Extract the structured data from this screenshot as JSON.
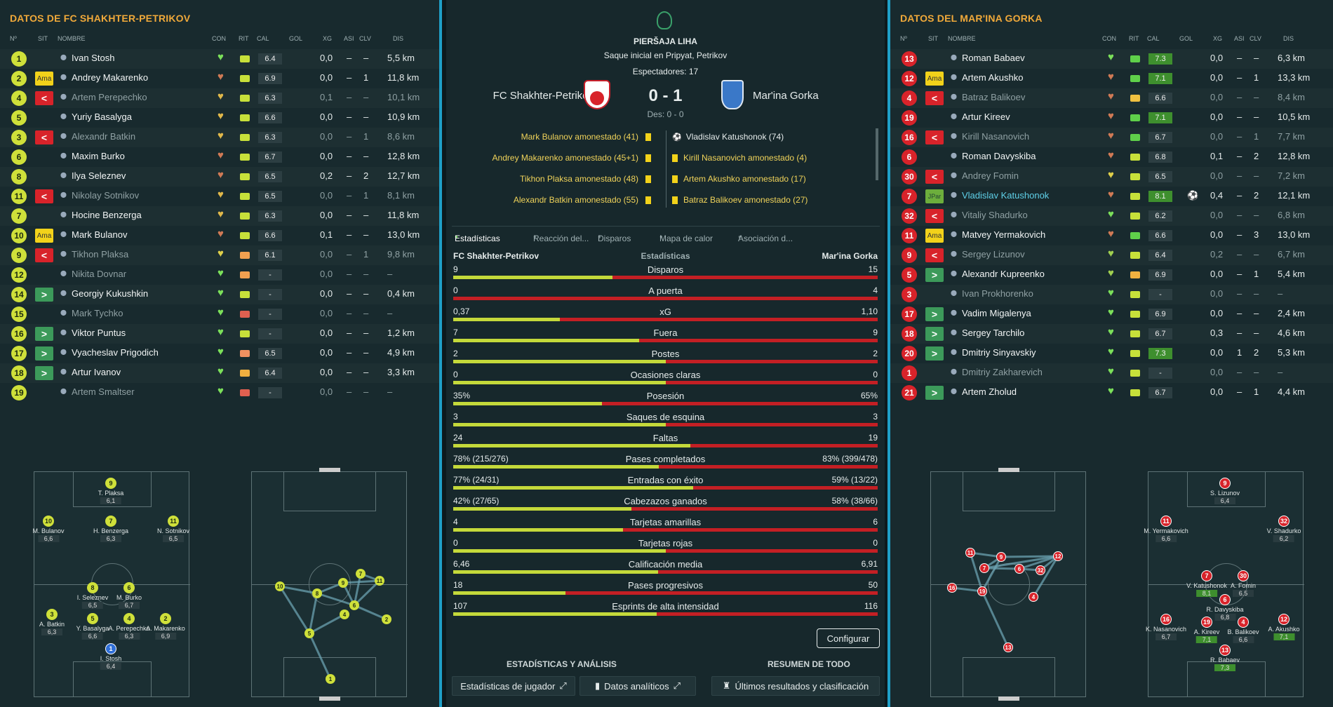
{
  "left": {
    "title": "DATOS DE FC SHAKHTER-PETRIKOV",
    "headers": [
      "Nº",
      "SIT",
      "NOMBRE",
      "CON",
      "RIT",
      "CAL",
      "GOL",
      "XG",
      "ASI",
      "CLV",
      "DIS"
    ],
    "players": [
      {
        "num": "1",
        "sit": "",
        "name": "Ivan Stosh",
        "dim": false,
        "con": "#7be05a",
        "rit": "#c7e03a",
        "cal": "6.4",
        "xg": "0,0",
        "asi": "–",
        "clv": "–",
        "dis": "5,5 km"
      },
      {
        "num": "2",
        "sit": "Ama",
        "name": "Andrey Makarenko",
        "dim": false,
        "con": "#d07a55",
        "rit": "#c7e03a",
        "cal": "6.9",
        "xg": "0,0",
        "asi": "–",
        "clv": "1",
        "dis": "11,8 km"
      },
      {
        "num": "4",
        "sit": "<",
        "name": "Artem Perepechko",
        "dim": true,
        "con": "#e0b84a",
        "rit": "#c7e03a",
        "cal": "6.3",
        "xg": "0,1",
        "asi": "–",
        "clv": "–",
        "dis": "10,1 km"
      },
      {
        "num": "5",
        "sit": "",
        "name": "Yuriy Basalyga",
        "dim": false,
        "con": "#e0b84a",
        "rit": "#c7e03a",
        "cal": "6.6",
        "xg": "0,0",
        "asi": "–",
        "clv": "–",
        "dis": "10,9 km"
      },
      {
        "num": "3",
        "sit": "<",
        "name": "Alexandr Batkin",
        "dim": true,
        "con": "#e0b84a",
        "rit": "#c7e03a",
        "cal": "6.3",
        "xg": "0,0",
        "asi": "–",
        "clv": "1",
        "dis": "8,6 km"
      },
      {
        "num": "6",
        "sit": "",
        "name": "Maxim Burko",
        "dim": false,
        "con": "#d07a55",
        "rit": "#c7e03a",
        "cal": "6.7",
        "xg": "0,0",
        "asi": "–",
        "clv": "–",
        "dis": "12,8 km"
      },
      {
        "num": "8",
        "sit": "",
        "name": "Ilya Seleznev",
        "dim": false,
        "con": "#d07a55",
        "rit": "#c7e03a",
        "cal": "6.5",
        "xg": "0,2",
        "asi": "–",
        "clv": "2",
        "dis": "12,7 km"
      },
      {
        "num": "11",
        "sit": "<",
        "name": "Nikolay Sotnikov",
        "dim": true,
        "con": "#e0b84a",
        "rit": "#c7e03a",
        "cal": "6.5",
        "xg": "0,0",
        "asi": "–",
        "clv": "1",
        "dis": "8,1 km"
      },
      {
        "num": "7",
        "sit": "",
        "name": "Hocine Benzerga",
        "dim": false,
        "con": "#e0b84a",
        "rit": "#c7e03a",
        "cal": "6.3",
        "xg": "0,0",
        "asi": "–",
        "clv": "–",
        "dis": "11,8 km"
      },
      {
        "num": "10",
        "sit": "Ama",
        "name": "Mark Bulanov",
        "dim": false,
        "con": "#d07a55",
        "rit": "#c7e03a",
        "cal": "6.6",
        "xg": "0,1",
        "asi": "–",
        "clv": "–",
        "dis": "13,0 km"
      },
      {
        "num": "9",
        "sit": "<",
        "name": "Tikhon Plaksa",
        "dim": true,
        "con": "#e0d04a",
        "rit": "#f0a050",
        "cal": "6.1",
        "xg": "0,0",
        "asi": "–",
        "clv": "1",
        "dis": "9,8 km"
      },
      {
        "num": "12",
        "sit": "",
        "name": "Nikita Dovnar",
        "dim": true,
        "con": "#7be05a",
        "rit": "#f0a050",
        "cal": "-",
        "xg": "0,0",
        "asi": "–",
        "clv": "–",
        "dis": "–"
      },
      {
        "num": "14",
        "sit": ">",
        "name": "Georgiy Kukushkin",
        "dim": false,
        "con": "#7be05a",
        "rit": "#c7e03a",
        "cal": "-",
        "xg": "0,0",
        "asi": "–",
        "clv": "–",
        "dis": "0,4 km"
      },
      {
        "num": "15",
        "sit": "",
        "name": "Mark Tychko",
        "dim": true,
        "con": "#7be05a",
        "rit": "#e06050",
        "cal": "-",
        "xg": "0,0",
        "asi": "–",
        "clv": "–",
        "dis": "–"
      },
      {
        "num": "16",
        "sit": ">",
        "name": "Viktor Puntus",
        "dim": false,
        "con": "#7be05a",
        "rit": "#c7e03a",
        "cal": "-",
        "xg": "0,0",
        "asi": "–",
        "clv": "–",
        "dis": "1,2 km"
      },
      {
        "num": "17",
        "sit": ">",
        "name": "Vyacheslav Prigodich",
        "dim": false,
        "con": "#7be05a",
        "rit": "#f09060",
        "cal": "6.5",
        "xg": "0,0",
        "asi": "–",
        "clv": "–",
        "dis": "4,9 km"
      },
      {
        "num": "18",
        "sit": ">",
        "name": "Artur Ivanov",
        "dim": false,
        "con": "#7be05a",
        "rit": "#f0b040",
        "cal": "6.4",
        "xg": "0,0",
        "asi": "–",
        "clv": "–",
        "dis": "3,3 km"
      },
      {
        "num": "19",
        "sit": "",
        "name": "Artem Smaltser",
        "dim": true,
        "con": "#7be05a",
        "rit": "#e06050",
        "cal": "-",
        "xg": "0,0",
        "asi": "–",
        "clv": "–",
        "dis": "–"
      }
    ],
    "formation": [
      {
        "n": "9",
        "name": "T. Plaksa",
        "r": "6,1"
      },
      {
        "n": "10",
        "name": "M. Bulanov",
        "r": "6,6"
      },
      {
        "n": "7",
        "name": "H. Benzerga",
        "r": "6,3"
      },
      {
        "n": "11",
        "name": "N. Sotnikov",
        "r": "6,5"
      },
      {
        "n": "8",
        "name": "I. Seleznev",
        "r": "6,5"
      },
      {
        "n": "6",
        "name": "M. Burko",
        "r": "6,7"
      },
      {
        "n": "3",
        "name": "A. Batkin",
        "r": "6,3"
      },
      {
        "n": "5",
        "name": "Y. Basalyga",
        "r": "6,6"
      },
      {
        "n": "4",
        "name": "A. Perepechko",
        "r": "6,3"
      },
      {
        "n": "2",
        "name": "A. Makarenko",
        "r": "6,9"
      },
      {
        "n": "1",
        "name": "I. Stosh",
        "r": "6,4"
      }
    ],
    "passmap": [
      "10",
      "8",
      "9",
      "11",
      "7",
      "6",
      "4",
      "5",
      "2",
      "1"
    ]
  },
  "right": {
    "title": "DATOS DEL MAR'INA GORKA",
    "headers": [
      "Nº",
      "SIT",
      "NOMBRE",
      "CON",
      "RIT",
      "CAL",
      "GOL",
      "XG",
      "ASI",
      "CLV",
      "DIS"
    ],
    "players": [
      {
        "num": "13",
        "sit": "",
        "name": "Roman Babaev",
        "dim": false,
        "con": "#7be05a",
        "rit": "#5fd04a",
        "cal": "7.3",
        "g": true,
        "xg": "0,0",
        "asi": "–",
        "clv": "–",
        "dis": "6,3 km"
      },
      {
        "num": "12",
        "sit": "Ama",
        "name": "Artem Akushko",
        "dim": false,
        "con": "#d07a55",
        "rit": "#5fd04a",
        "cal": "7.1",
        "g": true,
        "xg": "0,0",
        "asi": "–",
        "clv": "1",
        "dis": "13,3 km"
      },
      {
        "num": "4",
        "sit": "<",
        "name": "Batraz Balikoev",
        "dim": true,
        "con": "#d07a55",
        "rit": "#f0c040",
        "cal": "6.6",
        "g": false,
        "xg": "0,0",
        "asi": "–",
        "clv": "–",
        "dis": "8,4 km"
      },
      {
        "num": "19",
        "sit": "",
        "name": "Artur Kireev",
        "dim": false,
        "con": "#d07a55",
        "rit": "#5fd04a",
        "cal": "7.1",
        "g": true,
        "xg": "0,0",
        "asi": "–",
        "clv": "–",
        "dis": "10,5 km"
      },
      {
        "num": "16",
        "sit": "<",
        "name": "Kirill Nasanovich",
        "dim": true,
        "con": "#d07a55",
        "rit": "#5fd04a",
        "cal": "6.7",
        "g": false,
        "xg": "0,0",
        "asi": "–",
        "clv": "1",
        "dis": "7,7 km"
      },
      {
        "num": "6",
        "sit": "",
        "name": "Roman Davyskiba",
        "dim": false,
        "con": "#d07a55",
        "rit": "#c7e03a",
        "cal": "6.8",
        "g": false,
        "xg": "0,1",
        "asi": "–",
        "clv": "2",
        "dis": "12,8 km"
      },
      {
        "num": "30",
        "sit": "<",
        "name": "Andrey Fomin",
        "dim": true,
        "con": "#e0d04a",
        "rit": "#c7e03a",
        "cal": "6.5",
        "g": false,
        "xg": "0,0",
        "asi": "–",
        "clv": "–",
        "dis": "7,2 km"
      },
      {
        "num": "7",
        "sit": "JPar",
        "name": "Vladislav Katushonok",
        "dim": false,
        "hl": true,
        "con": "#d07a55",
        "rit": "#c7e03a",
        "cal": "8.1",
        "g": true,
        "gol": "⚽",
        "xg": "0,4",
        "asi": "–",
        "clv": "2",
        "dis": "12,1 km"
      },
      {
        "num": "32",
        "sit": "<",
        "name": "Vitaliy Shadurko",
        "dim": true,
        "con": "#7be05a",
        "rit": "#c7e03a",
        "cal": "6.2",
        "g": false,
        "xg": "0,0",
        "asi": "–",
        "clv": "–",
        "dis": "6,8 km"
      },
      {
        "num": "11",
        "sit": "Ama",
        "name": "Matvey Yermakovich",
        "dim": false,
        "con": "#d07a55",
        "rit": "#5fd04a",
        "cal": "6.6",
        "g": false,
        "xg": "0,0",
        "asi": "–",
        "clv": "3",
        "dis": "13,0 km"
      },
      {
        "num": "9",
        "sit": "<",
        "name": "Sergey Lizunov",
        "dim": true,
        "con": "#a0d050",
        "rit": "#c7e03a",
        "cal": "6.4",
        "g": false,
        "xg": "0,2",
        "asi": "–",
        "clv": "–",
        "dis": "6,7 km"
      },
      {
        "num": "5",
        "sit": ">",
        "name": "Alexandr Kupreenko",
        "dim": false,
        "con": "#a0d050",
        "rit": "#f0b040",
        "cal": "6.9",
        "g": false,
        "xg": "0,0",
        "asi": "–",
        "clv": "1",
        "dis": "5,4 km"
      },
      {
        "num": "3",
        "sit": "",
        "name": "Ivan Prokhorenko",
        "dim": true,
        "con": "#7be05a",
        "rit": "#c7e03a",
        "cal": "-",
        "g": false,
        "xg": "0,0",
        "asi": "–",
        "clv": "–",
        "dis": "–"
      },
      {
        "num": "17",
        "sit": ">",
        "name": "Vadim Migalenya",
        "dim": false,
        "con": "#7be05a",
        "rit": "#c7e03a",
        "cal": "6.9",
        "g": false,
        "xg": "0,0",
        "asi": "–",
        "clv": "–",
        "dis": "2,4 km"
      },
      {
        "num": "18",
        "sit": ">",
        "name": "Sergey Tarchilo",
        "dim": false,
        "con": "#7be05a",
        "rit": "#c7e03a",
        "cal": "6.7",
        "g": false,
        "xg": "0,3",
        "asi": "–",
        "clv": "–",
        "dis": "4,6 km"
      },
      {
        "num": "20",
        "sit": ">",
        "name": "Dmitriy Sinyavskiy",
        "dim": false,
        "con": "#7be05a",
        "rit": "#c7e03a",
        "cal": "7.3",
        "g": true,
        "xg": "0,0",
        "asi": "1",
        "clv": "2",
        "dis": "5,3 km"
      },
      {
        "num": "1",
        "sit": "",
        "name": "Dmitriy Zakharevich",
        "dim": true,
        "con": "#7be05a",
        "rit": "#c7e03a",
        "cal": "-",
        "g": false,
        "xg": "0,0",
        "asi": "–",
        "clv": "–",
        "dis": "–"
      },
      {
        "num": "21",
        "sit": ">",
        "name": "Artem Zholud",
        "dim": false,
        "con": "#7be05a",
        "rit": "#c7e03a",
        "cal": "6.7",
        "g": false,
        "xg": "0,0",
        "asi": "–",
        "clv": "1",
        "dis": "4,4 km"
      }
    ],
    "formation": [
      {
        "n": "9",
        "name": "S. Lizunov",
        "r": "6,4",
        "g": false
      },
      {
        "n": "11",
        "name": "M. Yermakovich",
        "r": "6,6",
        "g": false
      },
      {
        "n": "32",
        "name": "V. Shadurko",
        "r": "6,2",
        "g": false
      },
      {
        "n": "7",
        "name": "V. Katushonok",
        "r": "8,1",
        "g": true
      },
      {
        "n": "30",
        "name": "A. Fomin",
        "r": "6,5",
        "g": false
      },
      {
        "n": "6",
        "name": "R. Davyskiba",
        "r": "6,8",
        "g": false
      },
      {
        "n": "16",
        "name": "K. Nasanovich",
        "r": "6,7",
        "g": false
      },
      {
        "n": "19",
        "name": "A. Kireev",
        "r": "7,1",
        "g": true
      },
      {
        "n": "4",
        "name": "B. Balikoev",
        "r": "6,6",
        "g": false
      },
      {
        "n": "12",
        "name": "A. Akushko",
        "r": "7,1",
        "g": true
      },
      {
        "n": "13",
        "name": "R. Babaev",
        "r": "7,3",
        "g": true
      }
    ],
    "passmap": [
      "11",
      "9",
      "7",
      "6",
      "32",
      "12",
      "16",
      "19",
      "4",
      "13"
    ]
  },
  "center": {
    "competition": "PIERŠAJA LIHA",
    "venue": "Saque inicial en Pripyat, Petrikov",
    "attendance": "Espectadores: 17",
    "home": "FC Shakhter-Petrikov",
    "away": "Mar'ina Gorka",
    "score": "0 - 1",
    "halftime": "Des: 0 - 0",
    "events_left": [
      "Mark Bulanov amonestado (41)",
      "Andrey Makarenko amonestado (45+1)",
      "Tikhon Plaksa amonestado (48)",
      "Alexandr Batkin amonestado (55)"
    ],
    "events_right": [
      {
        "text": "Vladislav Katushonok (74)",
        "type": "goal"
      },
      {
        "text": "Kirill Nasanovich amonestado (4)",
        "type": "card"
      },
      {
        "text": "Artem Akushko amonestado (17)",
        "type": "card"
      },
      {
        "text": "Batraz Balikoev amonestado (27)",
        "type": "card"
      }
    ],
    "tabs": [
      "Estadísticas",
      "Reacción del...",
      "Disparos",
      "Mapa de calor",
      "Asociación d..."
    ],
    "stats_header": {
      "home": "FC Shakhter-Petrikov",
      "mid": "Estadísticas",
      "away": "Mar'ina Gorka"
    },
    "stats": [
      {
        "label": "Disparos",
        "l": "9",
        "r": "15",
        "share": 0.375
      },
      {
        "label": "A puerta",
        "l": "0",
        "r": "4",
        "share": 0.0
      },
      {
        "label": "xG",
        "l": "0,37",
        "r": "1,10",
        "share": 0.252
      },
      {
        "label": "Fuera",
        "l": "7",
        "r": "9",
        "share": 0.4375
      },
      {
        "label": "Postes",
        "l": "2",
        "r": "2",
        "share": 0.5
      },
      {
        "label": "Ocasiones claras",
        "l": "0",
        "r": "0",
        "share": 0.5
      },
      {
        "label": "Posesión",
        "l": "35%",
        "r": "65%",
        "share": 0.35
      },
      {
        "label": "Saques de esquina",
        "l": "3",
        "r": "3",
        "share": 0.5
      },
      {
        "label": "Faltas",
        "l": "24",
        "r": "19",
        "share": 0.558
      },
      {
        "label": "Pases completados",
        "l": "78% (215/276)",
        "r": "83% (399/478)",
        "share": 0.485
      },
      {
        "label": "Entradas con éxito",
        "l": "77% (24/31)",
        "r": "59% (13/22)",
        "share": 0.566
      },
      {
        "label": "Cabezazos ganados",
        "l": "42% (27/65)",
        "r": "58% (38/66)",
        "share": 0.42
      },
      {
        "label": "Tarjetas amarillas",
        "l": "4",
        "r": "6",
        "share": 0.4
      },
      {
        "label": "Tarjetas rojas",
        "l": "0",
        "r": "0",
        "share": 0.5
      },
      {
        "label": "Calificación media",
        "l": "6,46",
        "r": "6,91",
        "share": 0.483
      },
      {
        "label": "Pases progresivos",
        "l": "18",
        "r": "50",
        "share": 0.265
      },
      {
        "label": "Esprints de alta intensidad",
        "l": "107",
        "r": "116",
        "share": 0.48
      }
    ],
    "configure": "Configurar",
    "footer_left": "ESTADÍSTICAS Y ANÁLISIS",
    "footer_right": "RESUMEN DE TODO",
    "buttons": [
      "Estadísticas de jugador",
      "Datos analíticos",
      "Últimos resultados y clasificación"
    ]
  }
}
